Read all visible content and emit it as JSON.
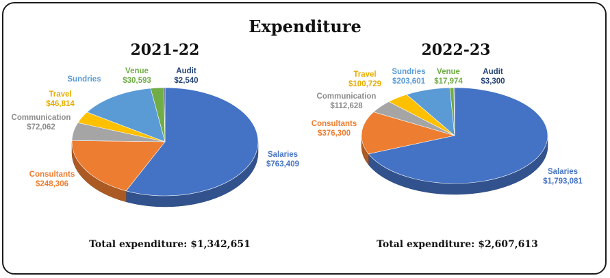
{
  "title": "Expenditure",
  "colors": {
    "Salaries": "#4472c4",
    "Consultants": "#ed7d31",
    "Communication": "#a5a5a5",
    "Travel": "#ffc000",
    "Sundries": "#5b9bd5",
    "Venue": "#70ad47",
    "Audit": "#264478"
  },
  "chart_data": [
    {
      "type": "pie",
      "title": "2021-22",
      "categories": [
        "Salaries",
        "Consultants",
        "Communication",
        "Travel",
        "Sundries",
        "Venue",
        "Audit"
      ],
      "values": [
        763409,
        248306,
        72062,
        46814,
        178927,
        30593,
        2540
      ],
      "value_labels": [
        "$763,409",
        "$248,306",
        "$72,062",
        "$46,814",
        "",
        "$30,593",
        "$2,540"
      ],
      "total_label": "Total expenditure: $1,342,651"
    },
    {
      "type": "pie",
      "title": "2022-23",
      "categories": [
        "Salaries",
        "Consultants",
        "Communication",
        "Travel",
        "Sundries",
        "Venue",
        "Audit"
      ],
      "values": [
        1793081,
        376300,
        112628,
        100729,
        203601,
        17974,
        3300
      ],
      "value_labels": [
        "$1,793,081",
        "$376,300",
        "$112,628",
        "$100,729",
        "$203,601",
        "$17,974",
        "$3,300"
      ],
      "total_label": "Total expenditure: $2,607,613"
    }
  ]
}
